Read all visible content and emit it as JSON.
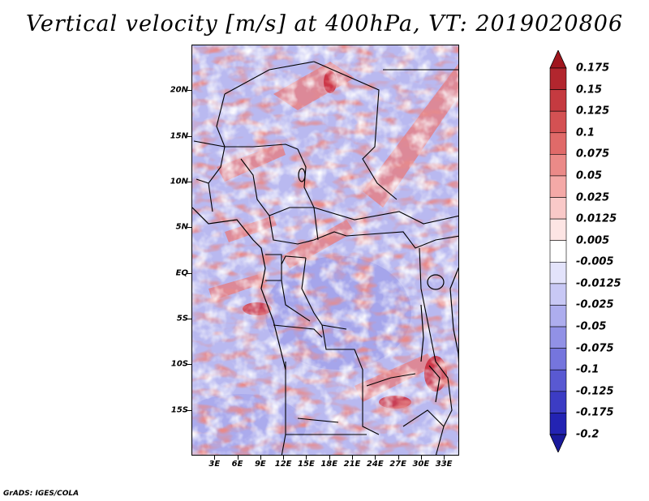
{
  "title": "Vertical velocity [m/s] at 400hPa, VT: 2019020806",
  "footer": "GrADS: IGES/COLA",
  "map": {
    "lat_labels": [
      "20N",
      "15N",
      "10N",
      "5N",
      "EQ",
      "5S",
      "10S",
      "15S"
    ],
    "lat_values": [
      20,
      15,
      10,
      5,
      0,
      -5,
      -10,
      -15
    ],
    "lon_labels": [
      "3E",
      "6E",
      "9E",
      "12E",
      "15E",
      "18E",
      "21E",
      "24E",
      "27E",
      "30E",
      "33E"
    ],
    "lon_values": [
      3,
      6,
      9,
      12,
      15,
      18,
      21,
      24,
      27,
      30,
      33
    ],
    "lon_range": [
      0,
      35
    ],
    "lat_range": [
      -20,
      25
    ]
  },
  "colorbar": {
    "labels": [
      "0.175",
      "0.15",
      "0.125",
      "0.1",
      "0.075",
      "0.05",
      "0.025",
      "0.0125",
      "0.005",
      "-0.005",
      "-0.0125",
      "-0.025",
      "-0.05",
      "-0.075",
      "-0.1",
      "-0.125",
      "-0.175",
      "-0.2"
    ],
    "colors": [
      "#a0161e",
      "#b2262e",
      "#c53a40",
      "#d45153",
      "#e06a69",
      "#eb8a88",
      "#f4a9a7",
      "#f9c9c8",
      "#fde5e4",
      "#ffffff",
      "#e3e3fb",
      "#c8c8f5",
      "#adadee",
      "#9191e6",
      "#7575dd",
      "#5959d2",
      "#3c3cc4",
      "#2323b3",
      "#1a1a9c"
    ]
  }
}
